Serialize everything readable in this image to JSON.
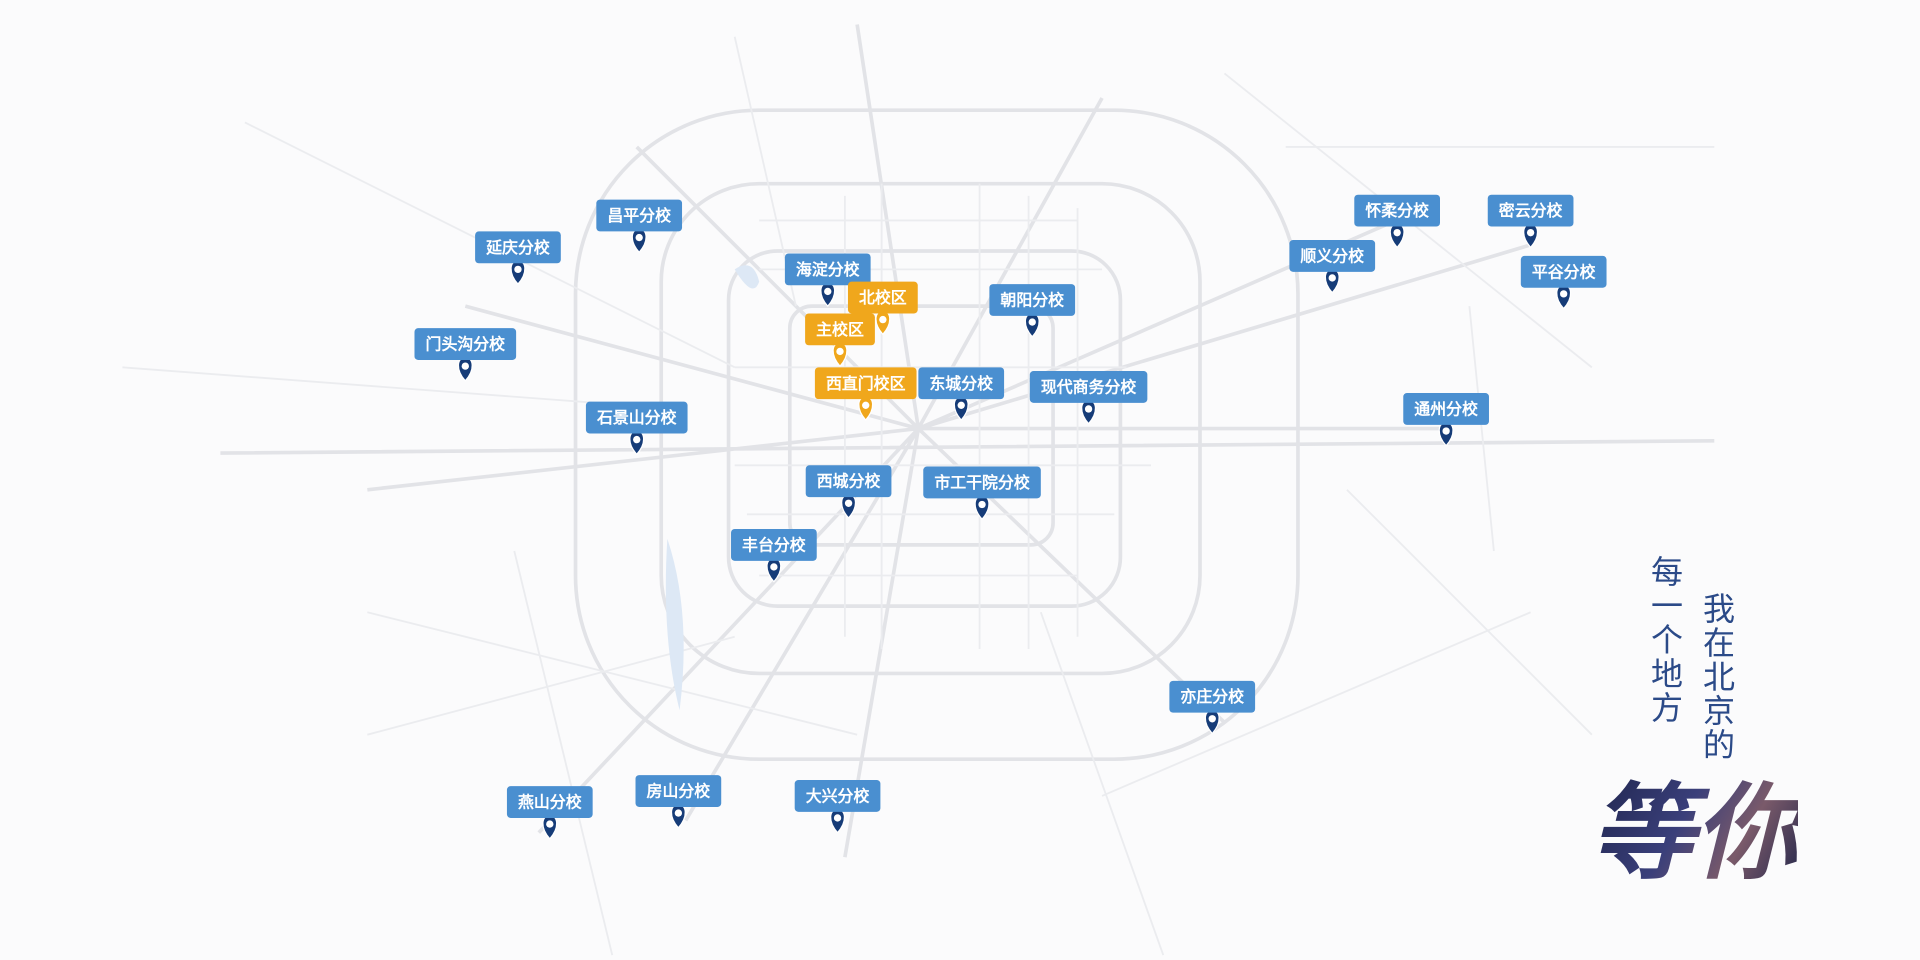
{
  "campuses": [
    {
      "label": "延庆分校",
      "color": "#4a8fd0",
      "pin_color": "#163c78"
    },
    {
      "label": "昌平分校",
      "color": "#4a8fd0",
      "pin_color": "#163c78"
    },
    {
      "label": "海淀分校",
      "color": "#4a8fd0",
      "pin_color": "#163c78"
    },
    {
      "label": "门头沟分校",
      "color": "#4a8fd0",
      "pin_color": "#163c78"
    },
    {
      "label": "朝阳分校",
      "color": "#4a8fd0",
      "pin_color": "#163c78"
    },
    {
      "label": "东城分校",
      "color": "#4a8fd0",
      "pin_color": "#163c78"
    },
    {
      "label": "现代商务分校",
      "color": "#4a8fd0",
      "pin_color": "#163c78"
    },
    {
      "label": "石景山分校",
      "color": "#4a8fd0",
      "pin_color": "#163c78"
    },
    {
      "label": "西城分校",
      "color": "#4a8fd0",
      "pin_color": "#163c78"
    },
    {
      "label": "市工干院分校",
      "color": "#4a8fd0",
      "pin_color": "#163c78"
    },
    {
      "label": "丰台分校",
      "color": "#4a8fd0",
      "pin_color": "#163c78"
    },
    {
      "label": "怀柔分校",
      "color": "#4a8fd0",
      "pin_color": "#163c78"
    },
    {
      "label": "密云分校",
      "color": "#4a8fd0",
      "pin_color": "#163c78"
    },
    {
      "label": "顺义分校",
      "color": "#4a8fd0",
      "pin_color": "#163c78"
    },
    {
      "label": "平谷分校",
      "color": "#4a8fd0",
      "pin_color": "#163c78"
    },
    {
      "label": "通州分校",
      "color": "#4a8fd0",
      "pin_color": "#163c78"
    },
    {
      "label": "亦庄分校",
      "color": "#4a8fd0",
      "pin_color": "#163c78"
    },
    {
      "label": "燕山分校",
      "color": "#4a8fd0",
      "pin_color": "#163c78"
    },
    {
      "label": "房山分校",
      "color": "#4a8fd0",
      "pin_color": "#163c78"
    },
    {
      "label": "大兴分校",
      "color": "#4a8fd0",
      "pin_color": "#163c78"
    },
    {
      "label": "北校区",
      "color": "#f0a71c",
      "pin_color": "#f0a71c"
    },
    {
      "label": "主校区",
      "color": "#f0a71c",
      "pin_color": "#f0a71c"
    },
    {
      "label": "西直门校区",
      "color": "#f0a71c",
      "pin_color": "#f0a71c"
    }
  ],
  "slogan": {
    "line1": "每一个地方",
    "line2": "我在北京的",
    "emphasis": "等你"
  }
}
